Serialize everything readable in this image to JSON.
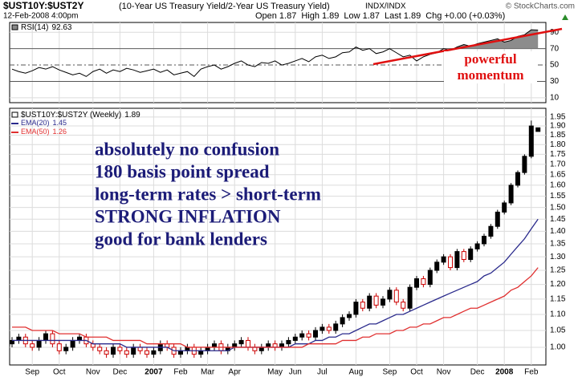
{
  "header": {
    "symbol": "$UST10Y:$UST2Y",
    "description": "(10-Year US Treasury Yield/2-Year US Treasury Yield)",
    "exchange": "INDX/INDX",
    "source": "© StockCharts.com",
    "date": "12-Feb-2008 4:00pm",
    "quote": [
      {
        "label": "Open",
        "value": 1.87
      },
      {
        "label": "High",
        "value": 1.89
      },
      {
        "label": "Low",
        "value": 1.87
      },
      {
        "label": "Last",
        "value": 1.89
      },
      {
        "label": "Chg",
        "value": "+0.00 (+0.03%)"
      }
    ]
  },
  "chart_data": [
    {
      "type": "line",
      "series": [
        {
          "name": "RSI(14)",
          "color": "#000000",
          "fill_above": 70,
          "fill_color": "#8c8c8c",
          "values": [
            45,
            42,
            40,
            43,
            47,
            45,
            48,
            44,
            41,
            38,
            40,
            36,
            42,
            45,
            40,
            44,
            42,
            46,
            44,
            41,
            43,
            45,
            41,
            44,
            38,
            40,
            42,
            36,
            45,
            48,
            50,
            45,
            48,
            52,
            55,
            50,
            48,
            53,
            52,
            55,
            50,
            52,
            55,
            58,
            54,
            60,
            62,
            58,
            60,
            65,
            66,
            72,
            68,
            70,
            64,
            66,
            70,
            65,
            60,
            62,
            55,
            60,
            63,
            65,
            70,
            68,
            72,
            75,
            73,
            76,
            78,
            80,
            82,
            78,
            80,
            85,
            87,
            93,
            92.63
          ]
        }
      ],
      "ylim": [
        4,
        102
      ],
      "yticks": [
        10,
        30,
        50,
        70,
        90
      ],
      "grid": true,
      "annotations": [
        "powerful",
        "momentum"
      ]
    },
    {
      "type": "candlestick",
      "log_scale": true,
      "grid": true,
      "categories": [
        null,
        null,
        null,
        "Sep",
        null,
        null,
        null,
        "Oct",
        null,
        null,
        null,
        null,
        "Nov",
        null,
        null,
        null,
        "Dec",
        null,
        null,
        null,
        null,
        "2007",
        null,
        null,
        null,
        "Feb",
        null,
        null,
        null,
        "Mar",
        null,
        null,
        null,
        "Apr",
        null,
        null,
        null,
        null,
        null,
        "May",
        null,
        null,
        "Jun",
        null,
        null,
        null,
        "Jul",
        null,
        null,
        null,
        null,
        "Aug",
        null,
        null,
        null,
        null,
        "Sep",
        null,
        null,
        null,
        "Oct",
        null,
        null,
        null,
        "Nov",
        null,
        null,
        null,
        null,
        "Dec",
        null,
        null,
        null,
        "2008",
        null,
        null,
        null,
        "Feb",
        null
      ],
      "series": [
        {
          "name": "$UST10Y:$UST2Y (Weekly)",
          "up_color": "#000000",
          "down_color": "#cc0000",
          "open": [
            1.01,
            1.02,
            1.03,
            1.01,
            1.0,
            1.02,
            1.04,
            1.01,
            0.99,
            1.0,
            1.02,
            1.03,
            1.01,
            1.0,
            0.99,
            0.98,
            1.0,
            0.99,
            0.98,
            1.0,
            0.99,
            0.98,
            0.99,
            1.01,
            1.0,
            0.98,
            0.99,
            1.0,
            0.98,
            0.99,
            1.0,
            1.01,
            0.99,
            1.0,
            1.01,
            1.02,
            1.0,
            0.99,
            1.0,
            1.01,
            1.0,
            1.01,
            1.02,
            1.03,
            1.04,
            1.03,
            1.05,
            1.06,
            1.05,
            1.07,
            1.09,
            1.1,
            1.14,
            1.12,
            1.16,
            1.13,
            1.15,
            1.18,
            1.14,
            1.12,
            1.19,
            1.22,
            1.2,
            1.25,
            1.28,
            1.3,
            1.26,
            1.32,
            1.29,
            1.33,
            1.35,
            1.38,
            1.42,
            1.48,
            1.52,
            1.6,
            1.66,
            1.74,
            1.87
          ],
          "high": [
            1.03,
            1.04,
            1.04,
            1.02,
            1.03,
            1.05,
            1.05,
            1.02,
            1.01,
            1.03,
            1.04,
            1.04,
            1.02,
            1.01,
            1.0,
            1.01,
            1.01,
            1.0,
            1.01,
            1.01,
            1.0,
            1.0,
            1.02,
            1.02,
            1.01,
            1.0,
            1.01,
            1.01,
            1.0,
            1.01,
            1.02,
            1.02,
            1.01,
            1.02,
            1.03,
            1.03,
            1.01,
            1.01,
            1.02,
            1.02,
            1.02,
            1.03,
            1.04,
            1.05,
            1.05,
            1.06,
            1.07,
            1.07,
            1.08,
            1.1,
            1.11,
            1.15,
            1.15,
            1.17,
            1.17,
            1.16,
            1.19,
            1.19,
            1.15,
            1.2,
            1.23,
            1.23,
            1.26,
            1.29,
            1.31,
            1.31,
            1.33,
            1.33,
            1.34,
            1.36,
            1.39,
            1.43,
            1.49,
            1.53,
            1.61,
            1.67,
            1.75,
            1.93,
            1.89
          ],
          "low": [
            1.0,
            1.01,
            1.0,
            0.99,
            0.99,
            1.01,
            1.0,
            0.98,
            0.98,
            0.99,
            1.01,
            1.0,
            0.99,
            0.98,
            0.97,
            0.97,
            0.98,
            0.97,
            0.97,
            0.98,
            0.97,
            0.97,
            0.98,
            0.99,
            0.97,
            0.97,
            0.98,
            0.97,
            0.97,
            0.98,
            0.99,
            0.98,
            0.98,
            0.99,
            1.0,
            0.99,
            0.98,
            0.98,
            0.99,
            0.99,
            0.99,
            1.0,
            1.01,
            1.02,
            1.02,
            1.02,
            1.04,
            1.04,
            1.04,
            1.06,
            1.08,
            1.09,
            1.11,
            1.11,
            1.12,
            1.12,
            1.14,
            1.13,
            1.11,
            1.11,
            1.18,
            1.19,
            1.19,
            1.24,
            1.27,
            1.25,
            1.25,
            1.28,
            1.28,
            1.32,
            1.34,
            1.37,
            1.41,
            1.47,
            1.51,
            1.59,
            1.65,
            1.73,
            1.87
          ],
          "close": [
            1.02,
            1.03,
            1.01,
            1.0,
            1.02,
            1.04,
            1.01,
            0.99,
            1.0,
            1.02,
            1.03,
            1.01,
            1.0,
            0.99,
            0.98,
            1.0,
            0.99,
            0.98,
            1.0,
            0.99,
            0.98,
            0.99,
            1.01,
            1.0,
            0.98,
            0.99,
            1.0,
            0.98,
            0.99,
            1.0,
            1.01,
            0.99,
            1.0,
            1.01,
            1.02,
            1.0,
            0.99,
            1.0,
            1.01,
            1.0,
            1.01,
            1.02,
            1.03,
            1.04,
            1.03,
            1.05,
            1.06,
            1.05,
            1.07,
            1.09,
            1.1,
            1.14,
            1.12,
            1.16,
            1.13,
            1.15,
            1.18,
            1.14,
            1.12,
            1.19,
            1.22,
            1.2,
            1.25,
            1.28,
            1.3,
            1.26,
            1.32,
            1.29,
            1.33,
            1.35,
            1.38,
            1.42,
            1.48,
            1.52,
            1.6,
            1.66,
            1.74,
            1.9,
            1.89
          ]
        },
        {
          "name": "EMA(20)",
          "color": "#2a2a8c",
          "values": [
            1.02,
            1.02,
            1.02,
            1.02,
            1.02,
            1.02,
            1.02,
            1.02,
            1.02,
            1.02,
            1.02,
            1.02,
            1.01,
            1.01,
            1.01,
            1.01,
            1.01,
            1.0,
            1.0,
            1.0,
            1.0,
            1.0,
            1.0,
            1.0,
            0.99,
            0.99,
            0.99,
            0.99,
            0.99,
            0.99,
            0.99,
            0.99,
            0.99,
            1.0,
            1.0,
            1.0,
            1.0,
            1.0,
            1.0,
            1.0,
            1.0,
            1.0,
            1.01,
            1.01,
            1.01,
            1.02,
            1.02,
            1.03,
            1.03,
            1.04,
            1.04,
            1.05,
            1.06,
            1.07,
            1.07,
            1.08,
            1.09,
            1.1,
            1.1,
            1.11,
            1.12,
            1.13,
            1.14,
            1.15,
            1.16,
            1.17,
            1.18,
            1.19,
            1.2,
            1.21,
            1.23,
            1.24,
            1.26,
            1.28,
            1.31,
            1.34,
            1.37,
            1.41,
            1.45
          ]
        },
        {
          "name": "EMA(50)",
          "color": "#e03030",
          "values": [
            1.06,
            1.06,
            1.06,
            1.05,
            1.05,
            1.05,
            1.05,
            1.04,
            1.04,
            1.04,
            1.04,
            1.03,
            1.03,
            1.03,
            1.03,
            1.02,
            1.02,
            1.02,
            1.02,
            1.02,
            1.01,
            1.01,
            1.01,
            1.01,
            1.01,
            1.01,
            1.0,
            1.0,
            1.0,
            1.0,
            1.0,
            1.0,
            1.0,
            1.0,
            1.0,
            1.0,
            1.0,
            1.0,
            1.0,
            1.0,
            1.0,
            1.0,
            1.0,
            1.0,
            1.01,
            1.01,
            1.01,
            1.01,
            1.01,
            1.02,
            1.02,
            1.02,
            1.03,
            1.03,
            1.04,
            1.04,
            1.04,
            1.05,
            1.05,
            1.06,
            1.06,
            1.07,
            1.07,
            1.08,
            1.09,
            1.09,
            1.1,
            1.11,
            1.12,
            1.12,
            1.13,
            1.14,
            1.15,
            1.16,
            1.18,
            1.19,
            1.21,
            1.23,
            1.26
          ]
        }
      ],
      "ylim": [
        0.95,
        2.0
      ],
      "yticks": [
        {
          "value": 1,
          "label": "1.00"
        },
        1.05,
        {
          "value": 1.1,
          "label": "1.10"
        },
        1.15,
        {
          "value": 1.2,
          "label": "1.20"
        },
        1.25,
        {
          "value": 1.3,
          "label": "1.30"
        },
        1.35,
        {
          "value": 1.4,
          "label": "1.40"
        },
        1.45,
        {
          "value": 1.5,
          "label": "1.50"
        },
        1.55,
        {
          "value": 1.6,
          "label": "1.60"
        },
        1.65,
        {
          "value": 1.7,
          "label": "1.70"
        },
        1.75,
        {
          "value": 1.8,
          "label": "1.80"
        },
        1.85,
        {
          "value": 1.9,
          "label": "1.90"
        },
        1.95
      ],
      "annotations": [
        "absolutely no confusion",
        "180 basis point spread",
        "long-term rates > short-term",
        "STRONG INFLATION",
        "good for bank lenders"
      ]
    }
  ]
}
